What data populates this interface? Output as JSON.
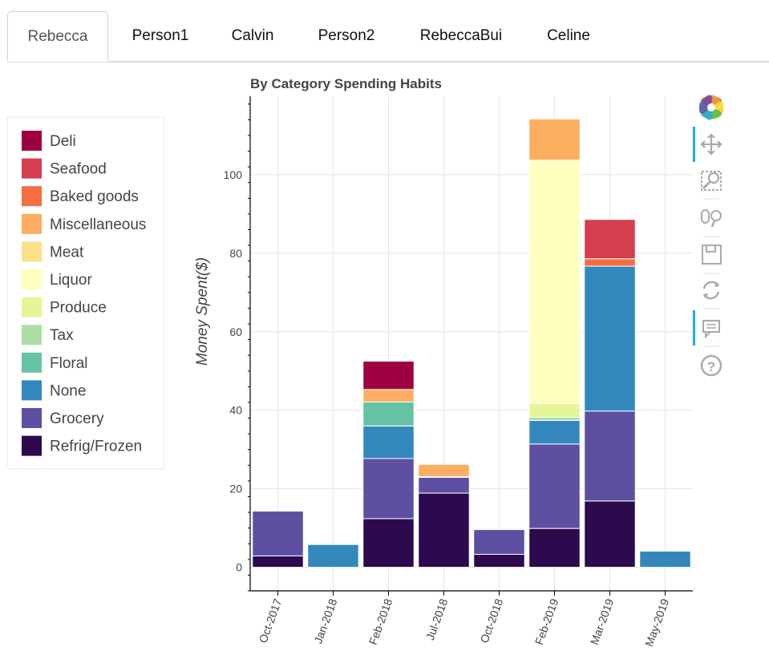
{
  "tabs": [
    "Rebecca",
    "Person1",
    "Calvin",
    "Person2",
    "RebeccaBui",
    "Celine"
  ],
  "active_tab": 0,
  "toolbar": [
    "bokeh-logo-icon",
    "pan-icon",
    "box-zoom-icon",
    "wheel-zoom-icon",
    "save-icon",
    "reset-icon",
    "hover-icon",
    "help-icon"
  ],
  "chart_data": {
    "type": "bar",
    "stacked": true,
    "title": "By Category Spending Habits",
    "xlabel": "",
    "ylabel": "Money Spent($)",
    "ylim": [
      -6,
      120
    ],
    "yticks": [
      0,
      20,
      40,
      60,
      80,
      100
    ],
    "categories": [
      "Oct-2017",
      "Jan-2018",
      "Feb-2018",
      "Jul-2018",
      "Oct-2018",
      "Feb-2019",
      "Mar-2019",
      "May-2019"
    ],
    "legend_position": "left",
    "series": [
      {
        "name": "Refrig/Frozen",
        "color": "#2d0a4e",
        "values": [
          2.9,
          0,
          12.4,
          18.9,
          3.3,
          9.9,
          16.9,
          0
        ]
      },
      {
        "name": "Grocery",
        "color": "#5e4fa2",
        "values": [
          11.4,
          0,
          15.3,
          4.0,
          6.3,
          21.5,
          22.9,
          0
        ]
      },
      {
        "name": "None",
        "color": "#3288bd",
        "values": [
          0,
          5.8,
          8.3,
          0.2,
          0,
          6.0,
          36.9,
          4.1
        ]
      },
      {
        "name": "Floral",
        "color": "#66c2a5",
        "values": [
          0,
          0,
          6.1,
          0,
          0,
          0,
          0,
          0
        ]
      },
      {
        "name": "Tax",
        "color": "#abdda4",
        "values": [
          0,
          0,
          0,
          0,
          0,
          0.8,
          0,
          0
        ]
      },
      {
        "name": "Produce",
        "color": "#e6f598",
        "values": [
          0,
          0,
          0,
          0,
          0,
          3.5,
          0,
          0
        ]
      },
      {
        "name": "Liquor",
        "color": "#ffffbf",
        "values": [
          0,
          0,
          0,
          0,
          0,
          62.0,
          0,
          0
        ]
      },
      {
        "name": "Meat",
        "color": "#fee08b",
        "values": [
          0,
          0,
          0,
          0,
          0,
          0,
          0,
          0
        ]
      },
      {
        "name": "Miscellaneous",
        "color": "#fdae61",
        "values": [
          0,
          0,
          3.2,
          3.1,
          0,
          10.5,
          0,
          0
        ]
      },
      {
        "name": "Baked goods",
        "color": "#f46d43",
        "values": [
          0,
          0,
          0,
          0,
          0,
          0,
          1.9,
          0
        ]
      },
      {
        "name": "Seafood",
        "color": "#d53e4f",
        "values": [
          0,
          0,
          0,
          0,
          0,
          0,
          10.0,
          0
        ]
      },
      {
        "name": "Deli",
        "color": "#9e0142",
        "values": [
          0,
          0,
          7.2,
          0,
          0,
          0,
          0,
          0
        ]
      }
    ]
  }
}
